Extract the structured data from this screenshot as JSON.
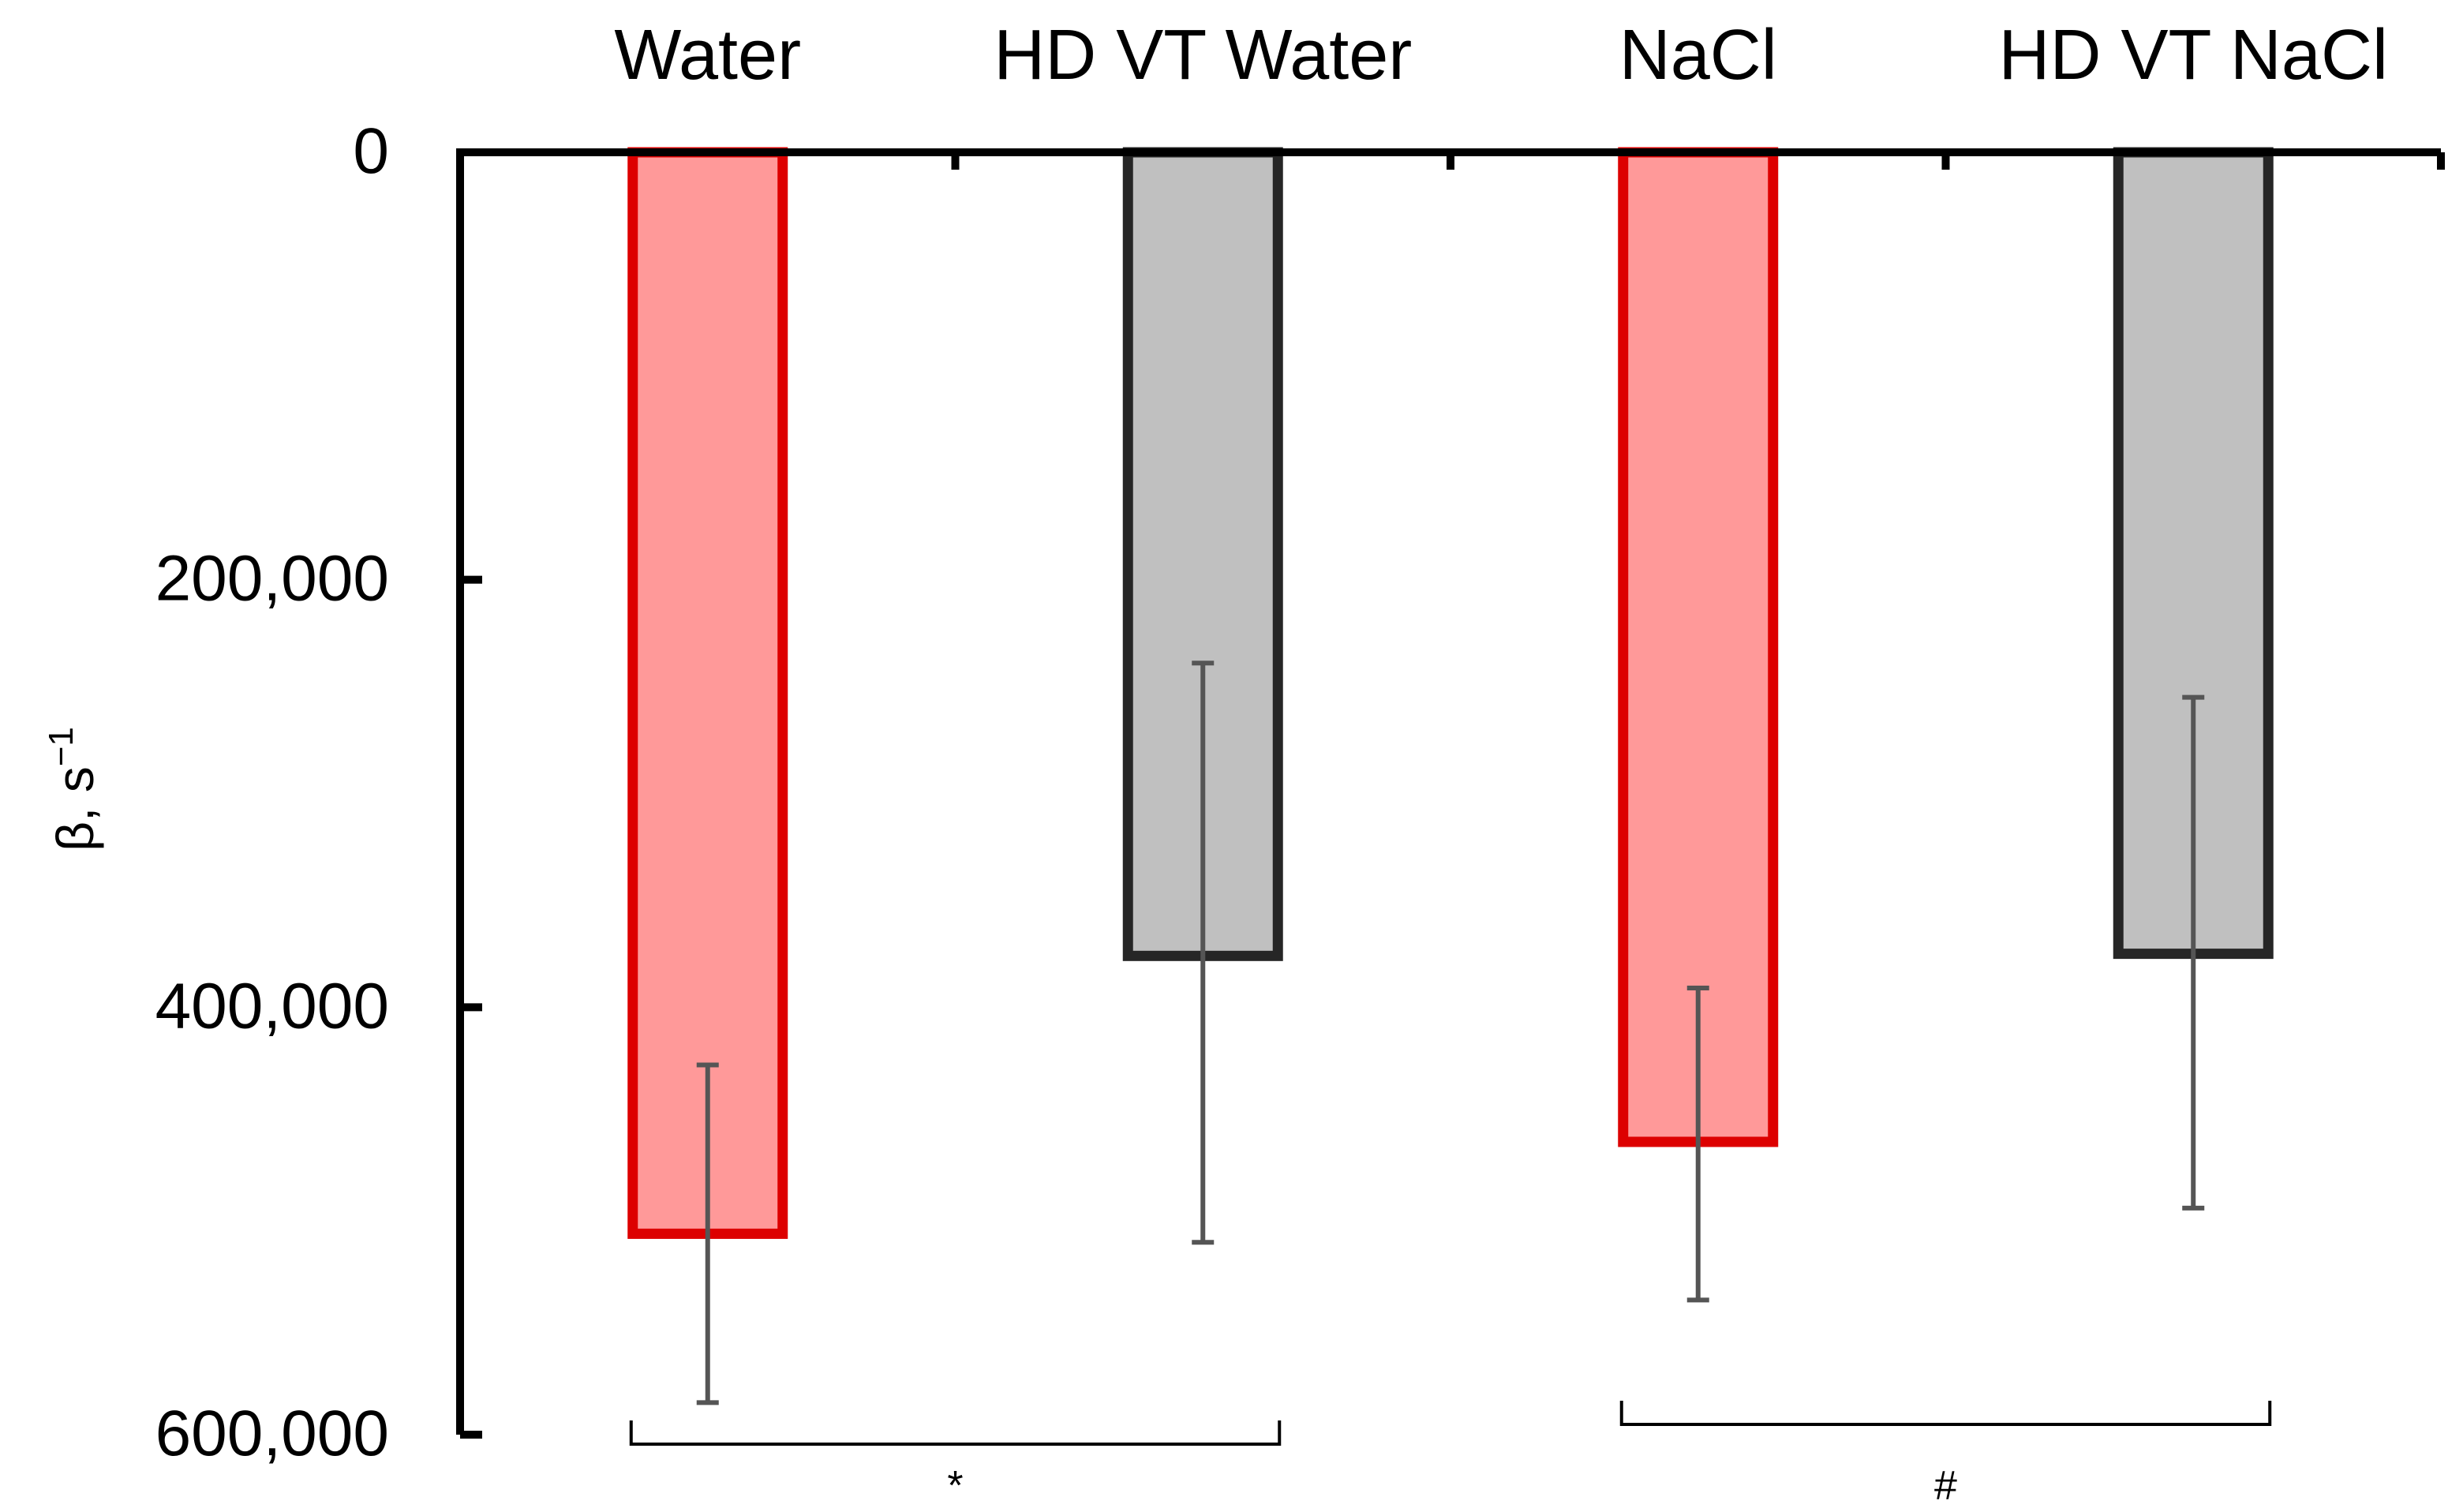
{
  "chart_data": {
    "type": "bar",
    "title": "",
    "xlabel": "",
    "ylabel": "β, s",
    "ylabel_superscript": "−1",
    "categories": [
      "Water",
      "HD VT Water",
      "NaCl",
      "HD VT NaCl"
    ],
    "values": [
      506000,
      376000,
      463000,
      375000
    ],
    "error_low": [
      427000,
      239000,
      391000,
      255000
    ],
    "error_high": [
      585000,
      510000,
      537000,
      494000
    ],
    "colors": {
      "fill": [
        "#ff9999",
        "#c0c0c0",
        "#ff9999",
        "#c0c0c0"
      ],
      "stroke": [
        "#dd0000",
        "#262626",
        "#dd0000",
        "#262626"
      ],
      "error_bar": "#555555"
    },
    "ylim": [
      0,
      600000
    ],
    "y_inverted": true,
    "y_ticks": [
      0,
      200000,
      400000,
      600000
    ],
    "y_tick_labels": [
      "0",
      "200,000",
      "400,000",
      "600,000"
    ],
    "x_axis_position": "top",
    "grid": false,
    "legend": "none",
    "annotations": [
      {
        "label": "*",
        "from_category": 0,
        "to_category": 1
      },
      {
        "label": "#",
        "from_category": 2,
        "to_category": 3
      }
    ]
  }
}
